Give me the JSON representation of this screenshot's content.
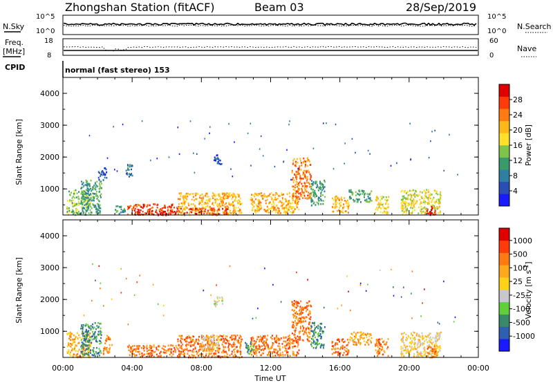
{
  "header": {
    "station": "Zhongshan Station (fitACF)",
    "beam": "Beam 03",
    "date": "28/Sep/2019"
  },
  "strip_panels": {
    "nsky_label": "N.Sky",
    "nsearch_label": "N.Search",
    "freq_label_1": "Freq.",
    "freq_label_2": "[MHz]",
    "nave_label": "Nave",
    "cpid_label": "CPID",
    "cpid_value": "normal (fast stereo) 153",
    "noise_left_ticks": [
      "10^5",
      "10^0"
    ],
    "noise_right_ticks": [
      "10^5",
      "10^0"
    ],
    "freq_left_ticks": [
      "18",
      "8"
    ],
    "freq_right_ticks": [
      "60",
      "0"
    ]
  },
  "chart_data": [
    {
      "type": "heatmap",
      "name": "power",
      "ylabel": "Slant Range [km]",
      "xlabel": "",
      "x_ticks": [
        "00:00",
        "04:00",
        "08:00",
        "12:00",
        "16:00",
        "20:00",
        "00:00"
      ],
      "y_ticks": [
        "1000",
        "2000",
        "3000",
        "4000"
      ],
      "xlim_hours": [
        0,
        24
      ],
      "ylim_km": [
        180,
        4500
      ],
      "colorbar": {
        "label": "Power [dB]",
        "ticks": [
          "4",
          "8",
          "12",
          "16",
          "20",
          "24",
          "28"
        ],
        "colors": [
          "#1a1aff",
          "#2a4fb4",
          "#2f7fa0",
          "#3a9a6a",
          "#7ec34a",
          "#ffe02a",
          "#ffb81a",
          "#ff7a10",
          "#ff3b0a",
          "#e00000"
        ]
      },
      "regions": [
        {
          "t0": 0.2,
          "t1": 1.6,
          "r0": 200,
          "r1": 1000,
          "level": 4
        },
        {
          "t0": 1.0,
          "t1": 2.2,
          "r0": 250,
          "r1": 1300,
          "level": 3
        },
        {
          "t0": 2.0,
          "t1": 2.5,
          "r0": 1300,
          "r1": 1700,
          "level": 1
        },
        {
          "t0": 3.0,
          "t1": 3.6,
          "r0": 230,
          "r1": 500,
          "level": 3
        },
        {
          "t0": 3.6,
          "t1": 4.0,
          "r0": 1300,
          "r1": 1800,
          "level": 2
        },
        {
          "t0": 3.7,
          "t1": 6.8,
          "r0": 220,
          "r1": 550,
          "level": 8
        },
        {
          "t0": 4.0,
          "t1": 6.5,
          "r0": 200,
          "r1": 320,
          "level": 9
        },
        {
          "t0": 6.6,
          "t1": 10.3,
          "r0": 200,
          "r1": 900,
          "level": 6
        },
        {
          "t0": 7.0,
          "t1": 9.5,
          "r0": 220,
          "r1": 420,
          "level": 8
        },
        {
          "t0": 8.7,
          "t1": 9.2,
          "r0": 1800,
          "r1": 2100,
          "level": 1
        },
        {
          "t0": 10.8,
          "t1": 13.6,
          "r0": 250,
          "r1": 900,
          "level": 6
        },
        {
          "t0": 13.2,
          "t1": 14.3,
          "r0": 700,
          "r1": 2000,
          "level": 7
        },
        {
          "t0": 14.3,
          "t1": 15.1,
          "r0": 500,
          "r1": 1300,
          "level": 3
        },
        {
          "t0": 15.5,
          "t1": 16.5,
          "r0": 280,
          "r1": 800,
          "level": 6
        },
        {
          "t0": 16.5,
          "t1": 17.8,
          "r0": 600,
          "r1": 1000,
          "level": 3
        },
        {
          "t0": 18.0,
          "t1": 18.8,
          "r0": 250,
          "r1": 800,
          "level": 5
        },
        {
          "t0": 19.5,
          "t1": 21.8,
          "r0": 230,
          "r1": 1000,
          "level": 5
        },
        {
          "t0": 21.0,
          "t1": 21.5,
          "r0": 200,
          "r1": 500,
          "level": 9
        }
      ]
    },
    {
      "type": "heatmap",
      "name": "velocity",
      "ylabel": "Slant Range [km]",
      "xlabel": "Time UT",
      "x_ticks": [
        "00:00",
        "04:00",
        "08:00",
        "12:00",
        "16:00",
        "20:00",
        "00:00"
      ],
      "y_ticks": [
        "1000",
        "2000",
        "3000",
        "4000"
      ],
      "xlim_hours": [
        0,
        24
      ],
      "ylim_km": [
        180,
        4500
      ],
      "colorbar": {
        "label": "Velocity [m s^-1]",
        "ticks": [
          "1000",
          "500",
          "100",
          "25",
          "-25",
          "-100",
          "-500",
          "-1000"
        ],
        "colors": [
          "#1a1aff",
          "#2f5fb0",
          "#3a8a6a",
          "#5fcf3a",
          "#c8c8c8",
          "#ffd21a",
          "#ffa81a",
          "#ff7a10",
          "#ff3b0a",
          "#e00000"
        ]
      },
      "regions": [
        {
          "t0": 0.2,
          "t1": 1.6,
          "r0": 200,
          "r1": 1000,
          "level": 6
        },
        {
          "t0": 1.0,
          "t1": 2.2,
          "r0": 250,
          "r1": 1300,
          "level": 2
        },
        {
          "t0": 2.3,
          "t1": 2.8,
          "r0": 300,
          "r1": 900,
          "level": 7
        },
        {
          "t0": 3.7,
          "t1": 6.8,
          "r0": 220,
          "r1": 600,
          "level": 7
        },
        {
          "t0": 6.6,
          "t1": 10.3,
          "r0": 200,
          "r1": 900,
          "level": 7
        },
        {
          "t0": 8.0,
          "t1": 9.0,
          "r0": 400,
          "r1": 900,
          "level": 5
        },
        {
          "t0": 8.7,
          "t1": 9.2,
          "r0": 1800,
          "r1": 2100,
          "level": 4
        },
        {
          "t0": 10.8,
          "t1": 13.6,
          "r0": 250,
          "r1": 900,
          "level": 7
        },
        {
          "t0": 10.5,
          "t1": 11.0,
          "r0": 300,
          "r1": 700,
          "level": 2
        },
        {
          "t0": 13.2,
          "t1": 14.3,
          "r0": 700,
          "r1": 2000,
          "level": 7
        },
        {
          "t0": 14.3,
          "t1": 15.1,
          "r0": 500,
          "r1": 1300,
          "level": 2
        },
        {
          "t0": 15.5,
          "t1": 16.5,
          "r0": 280,
          "r1": 800,
          "level": 7
        },
        {
          "t0": 16.5,
          "t1": 17.8,
          "r0": 600,
          "r1": 1000,
          "level": 6
        },
        {
          "t0": 18.0,
          "t1": 18.8,
          "r0": 250,
          "r1": 800,
          "level": 7
        },
        {
          "t0": 19.5,
          "t1": 21.8,
          "r0": 230,
          "r1": 1000,
          "level": 5
        },
        {
          "t0": 21.0,
          "t1": 21.6,
          "r0": 200,
          "r1": 600,
          "level": 7
        }
      ]
    }
  ]
}
